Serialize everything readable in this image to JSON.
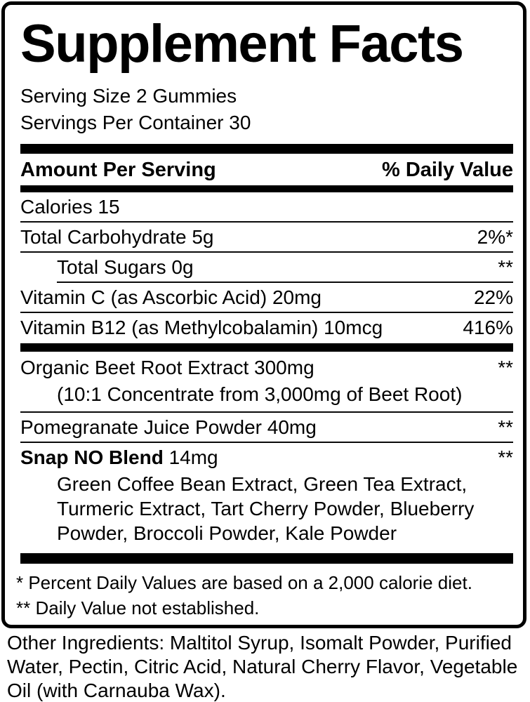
{
  "panel": {
    "title": "Supplement Facts",
    "serving_size": "Serving Size 2 Gummies",
    "servings_per_container": "Servings Per Container 30",
    "header": {
      "amount_label": "Amount Per Serving",
      "dv_label": "% Daily Value"
    },
    "rows": [
      {
        "name": "Calories 15",
        "dv": ""
      },
      {
        "name": "Total Carbohydrate 5g",
        "dv": "2%*"
      },
      {
        "name": "Total Sugars 0g",
        "dv": "**"
      },
      {
        "name": "Vitamin C (as Ascorbic Acid) 20mg",
        "dv": "22%"
      },
      {
        "name": "Vitamin B12 (as Methylcobalamin) 10mcg",
        "dv": "416%"
      },
      {
        "name": "Organic Beet Root Extract 300mg",
        "dv": "**",
        "detail": "(10:1 Concentrate from 3,000mg of Beet Root)"
      },
      {
        "name": "Pomegranate Juice Powder 40mg",
        "dv": "**"
      },
      {
        "name_bold": "Snap NO Blend",
        "name_rest": " 14mg",
        "dv": "**",
        "detail": "Green Coffee Bean Extract, Green Tea Extract, Turmeric Extract, Tart Cherry Powder, Blueberry Powder, Broccoli Powder, Kale Powder"
      }
    ],
    "footnotes": {
      "dv_basis": "* Percent Daily Values are based on a 2,000 calorie diet.",
      "dv_not_established": "** Daily Value not established."
    },
    "other_ingredients": "Other Ingredients: Maltitol Syrup, Isomalt Powder, Purified Water, Pectin, Citric Acid, Natural Cherry Flavor, Vegetable Oil (with Carnauba Wax).",
    "colors": {
      "ink": "#000000",
      "background": "#ffffff"
    }
  }
}
